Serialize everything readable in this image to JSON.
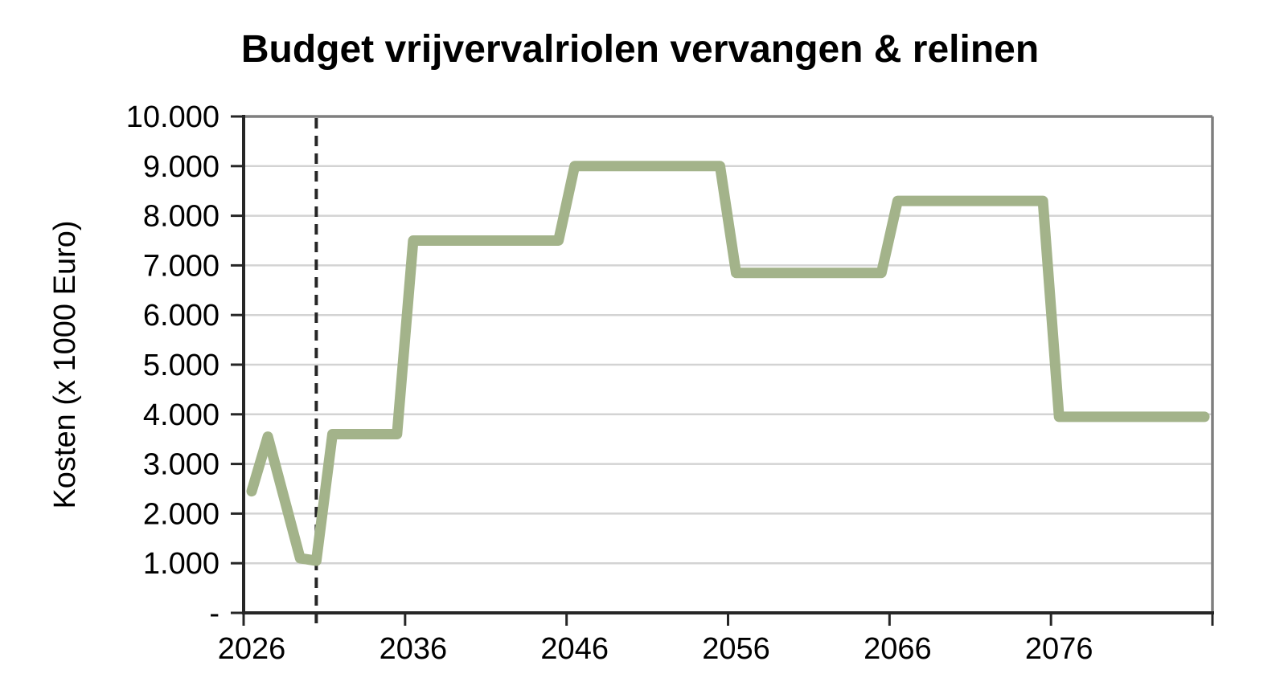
{
  "chart_data": {
    "type": "line",
    "title": "Budget vrijvervalriolen vervangen & relinen",
    "ylabel": "Kosten (x 1000 Euro)",
    "xlabel": "",
    "ylim": [
      0,
      10000
    ],
    "ytick_step": 1000,
    "ytick_labels_bottom_to_top": [
      "-",
      "1.000",
      "2.000",
      "3.000",
      "4.000",
      "5.000",
      "6.000",
      "7.000",
      "8.000",
      "9.000",
      "10.000"
    ],
    "xtick_years": [
      2026,
      2036,
      2046,
      2056,
      2066,
      2076
    ],
    "xtick_labels": [
      "2026",
      "2036",
      "2046",
      "2056",
      "2066",
      "2076"
    ],
    "x_axis_mode": "categories-between-ticks",
    "marker_line_year": 2030,
    "grid": "horizontal",
    "legend": "none",
    "years": [
      2026,
      2027,
      2028,
      2029,
      2030,
      2031,
      2032,
      2033,
      2034,
      2035,
      2036,
      2037,
      2038,
      2039,
      2040,
      2041,
      2042,
      2043,
      2044,
      2045,
      2046,
      2047,
      2048,
      2049,
      2050,
      2051,
      2052,
      2053,
      2054,
      2055,
      2056,
      2057,
      2058,
      2059,
      2060,
      2061,
      2062,
      2063,
      2064,
      2065,
      2066,
      2067,
      2068,
      2069,
      2070,
      2071,
      2072,
      2073,
      2074,
      2075,
      2076,
      2077,
      2078,
      2079,
      2080,
      2081,
      2082,
      2083,
      2084,
      2085
    ],
    "values": [
      2450,
      3550,
      2325,
      1100,
      1050,
      3600,
      3600,
      3600,
      3600,
      3600,
      7500,
      7500,
      7500,
      7500,
      7500,
      7500,
      7500,
      7500,
      7500,
      7500,
      9000,
      9000,
      9000,
      9000,
      9000,
      9000,
      9000,
      9000,
      9000,
      9000,
      6850,
      6850,
      6850,
      6850,
      6850,
      6850,
      6850,
      6850,
      6850,
      6850,
      8300,
      8300,
      8300,
      8300,
      8300,
      8300,
      8300,
      8300,
      8300,
      8300,
      3950,
      3950,
      3950,
      3950,
      3950,
      3950,
      3950,
      3950,
      3950,
      3950
    ],
    "colors": {
      "line": "#a3b38a",
      "grid": "#d3d3d3",
      "plot_border": "#7f7f7f",
      "axis": "#262626",
      "marker_line": "#262626",
      "text": "#000000"
    }
  }
}
